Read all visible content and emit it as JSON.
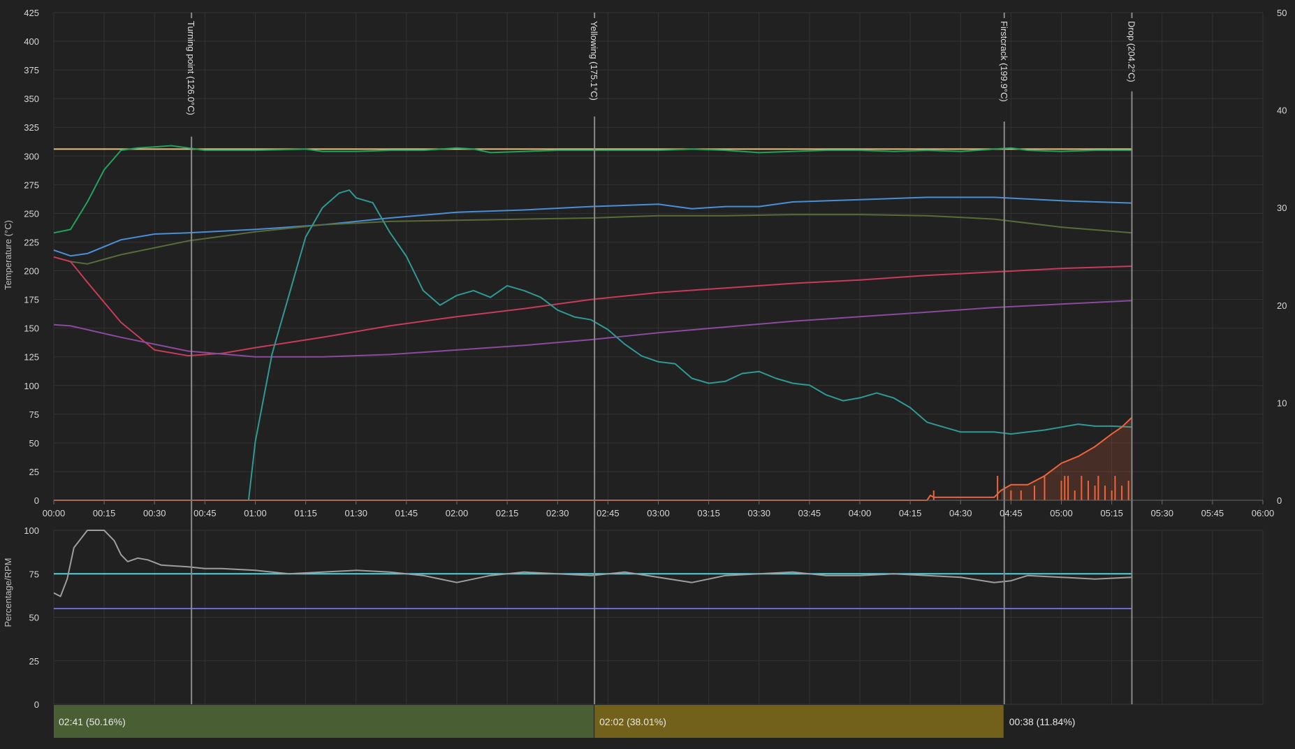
{
  "chart_data": [
    {
      "type": "line",
      "panel": "temperature",
      "ylabel": "Temperature (°C)",
      "ylim": [
        0,
        425
      ],
      "y_ticks": [
        "0",
        "25",
        "50",
        "75",
        "100",
        "125",
        "150",
        "175",
        "200",
        "225",
        "250",
        "275",
        "300",
        "325",
        "350",
        "375",
        "400",
        "425"
      ],
      "y2lim": [
        0,
        50
      ],
      "y2_ticks": [
        "0",
        "10",
        "20",
        "30",
        "40",
        "50"
      ],
      "xlim": [
        0,
        360
      ],
      "x_ticks": [
        "00:00",
        "00:15",
        "00:30",
        "00:45",
        "01:00",
        "01:15",
        "01:30",
        "01:45",
        "02:00",
        "02:15",
        "02:30",
        "02:45",
        "03:00",
        "03:15",
        "03:30",
        "03:45",
        "04:00",
        "04:15",
        "04:30",
        "04:45",
        "05:00",
        "05:15",
        "05:30",
        "05:45",
        "06:00"
      ],
      "grid": true,
      "events": [
        {
          "label": "Turning point (126.0°C)",
          "x": 41
        },
        {
          "label": "Yellowing (175.1°C)",
          "x": 161
        },
        {
          "label": "Firstcrack (199.9°C)",
          "x": 283
        },
        {
          "label": "Drop (204.2°C)",
          "x": 321
        }
      ],
      "series": [
        {
          "color": "#e8c07a",
          "axis": "left",
          "x": [
            0,
            321
          ],
          "values": [
            306,
            306
          ]
        },
        {
          "color": "#1fa35d",
          "axis": "left",
          "x": [
            0,
            5,
            10,
            15,
            20,
            25,
            30,
            35,
            40,
            45,
            60,
            75,
            80,
            90,
            100,
            110,
            120,
            125,
            130,
            140,
            150,
            160,
            170,
            180,
            190,
            200,
            210,
            220,
            230,
            240,
            250,
            260,
            270,
            280,
            285,
            290,
            300,
            310,
            321
          ],
          "values": [
            233,
            236,
            260,
            288,
            305,
            307,
            308,
            309,
            307,
            305,
            305,
            306,
            304,
            304,
            305,
            305,
            307,
            306,
            303,
            304,
            305,
            305,
            305,
            305,
            306,
            305,
            303,
            304,
            305,
            305,
            304,
            305,
            304,
            306,
            307,
            305,
            304,
            305,
            305
          ]
        },
        {
          "color": "#4a8fd6",
          "axis": "left",
          "x": [
            0,
            5,
            10,
            20,
            30,
            40,
            60,
            80,
            100,
            120,
            140,
            160,
            180,
            190,
            200,
            210,
            220,
            240,
            260,
            280,
            300,
            321
          ],
          "values": [
            218,
            213,
            215,
            227,
            232,
            233,
            236,
            240,
            246,
            251,
            253,
            256,
            258,
            254,
            256,
            256,
            260,
            262,
            264,
            264,
            261,
            259
          ]
        },
        {
          "color": "#5a6b3a",
          "axis": "left",
          "x": [
            0,
            5,
            10,
            20,
            40,
            60,
            80,
            100,
            120,
            140,
            160,
            180,
            200,
            220,
            240,
            260,
            280,
            300,
            321
          ],
          "values": [
            212,
            208,
            206,
            214,
            226,
            234,
            240,
            243,
            244,
            245,
            246,
            248,
            248,
            249,
            249,
            248,
            245,
            238,
            233
          ]
        },
        {
          "color": "#c93b5a",
          "axis": "left",
          "x": [
            0,
            5,
            10,
            20,
            30,
            40,
            50,
            60,
            80,
            100,
            120,
            140,
            160,
            180,
            200,
            220,
            240,
            260,
            280,
            300,
            321
          ],
          "values": [
            212,
            208,
            190,
            155,
            131,
            126,
            128,
            133,
            142,
            152,
            160,
            167,
            175,
            181,
            185,
            189,
            192,
            196,
            199,
            202,
            204
          ]
        },
        {
          "color": "#8b4a9e",
          "axis": "left",
          "x": [
            0,
            5,
            20,
            40,
            60,
            80,
            100,
            120,
            140,
            160,
            180,
            200,
            220,
            240,
            260,
            280,
            300,
            321
          ],
          "values": [
            153,
            152,
            142,
            130,
            125,
            125,
            127,
            131,
            135,
            140,
            146,
            151,
            156,
            160,
            164,
            168,
            171,
            174
          ]
        },
        {
          "color": "#2f9a94",
          "axis": "right",
          "x": [
            58,
            60,
            65,
            70,
            75,
            80,
            85,
            88,
            90,
            95,
            100,
            105,
            110,
            115,
            120,
            125,
            130,
            135,
            140,
            145,
            150,
            155,
            160,
            165,
            170,
            175,
            180,
            185,
            190,
            195,
            200,
            205,
            210,
            215,
            220,
            225,
            230,
            235,
            240,
            245,
            250,
            255,
            260,
            265,
            270,
            275,
            280,
            285,
            290,
            295,
            300,
            305,
            310,
            315,
            321
          ],
          "values": [
            0,
            6,
            15,
            21,
            27,
            30,
            31.5,
            31.8,
            31,
            30.5,
            27.5,
            25,
            21.5,
            20,
            21,
            21.5,
            20.8,
            22,
            21.5,
            20.8,
            19.5,
            18.8,
            18.5,
            17.5,
            16,
            14.8,
            14.2,
            14.0,
            12.5,
            12,
            12.2,
            13,
            13.2,
            12.5,
            12,
            11.8,
            10.8,
            10.2,
            10.5,
            11,
            10.5,
            9.5,
            8,
            7.5,
            7,
            7,
            7,
            6.8,
            7,
            7.2,
            7.5,
            7.8,
            7.6,
            7.6,
            7.5
          ]
        },
        {
          "color": "#f0643a",
          "axis": "right",
          "fill": true,
          "x": [
            0,
            260,
            261,
            262,
            280,
            282,
            285,
            290,
            295,
            300,
            305,
            310,
            315,
            318,
            321
          ],
          "values": [
            0,
            0,
            0.5,
            0.3,
            0.3,
            1.0,
            1.6,
            1.6,
            2.5,
            3.8,
            4.5,
            5.5,
            6.8,
            7.5,
            8.5
          ]
        }
      ]
    },
    {
      "type": "line",
      "panel": "percentage",
      "ylabel": "Percentage/RPM",
      "ylim": [
        0,
        100
      ],
      "y_ticks": [
        "0",
        "25",
        "50",
        "75",
        "100"
      ],
      "xlim": [
        0,
        360
      ],
      "series": [
        {
          "color": "#4fd3e0",
          "x": [
            0,
            321
          ],
          "values": [
            75,
            75
          ]
        },
        {
          "color": "#6b6bd6",
          "x": [
            0,
            321
          ],
          "values": [
            55,
            55
          ]
        },
        {
          "color": "#9e9e9e",
          "x": [
            0,
            2,
            4,
            6,
            10,
            15,
            18,
            20,
            22,
            25,
            28,
            32,
            40,
            45,
            50,
            60,
            65,
            70,
            80,
            90,
            100,
            110,
            120,
            130,
            140,
            150,
            160,
            170,
            180,
            190,
            200,
            210,
            220,
            230,
            240,
            250,
            260,
            270,
            280,
            285,
            290,
            300,
            310,
            321
          ],
          "values": [
            64,
            62,
            72,
            90,
            100,
            100,
            94,
            86,
            82,
            84,
            83,
            80,
            79,
            78,
            78,
            77,
            76,
            75,
            76,
            77,
            76,
            74,
            70,
            74,
            76,
            75,
            74,
            76,
            73,
            70,
            74,
            75,
            76,
            74,
            74,
            75,
            74,
            73,
            70,
            71,
            74,
            73,
            72,
            73
          ]
        }
      ]
    }
  ],
  "phases": [
    {
      "label": "02:41 (50.16%)",
      "start": 0,
      "end": 161,
      "color": "#4a5e34"
    },
    {
      "label": "02:02 (38.01%)",
      "start": 161,
      "end": 283,
      "color": "#71611a"
    },
    {
      "label": "00:38 (11.84%)",
      "start": 283,
      "end": 321,
      "color": ""
    }
  ]
}
